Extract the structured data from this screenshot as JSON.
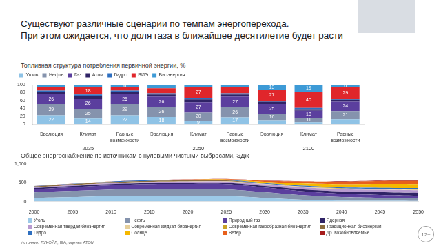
{
  "slide": {
    "title": [
      "Существуют различные сценарии по темпам энергоперехода.",
      "При этом ожидается, что доля газа в ближайшее десятилетие будет расти"
    ],
    "source": "Источник: ЛУКОЙЛ, IEA, оценки АТОМ",
    "badge": "12+"
  },
  "chart_data": [
    {
      "type": "bar",
      "title": "Топливная структура потребления первичной энергии, %",
      "categories": [
        "Эволюция",
        "Климат",
        "Равные возможности",
        "Эволюция",
        "Климат",
        "Равные возможности",
        "Эволюция",
        "Климат",
        "Равные возможности"
      ],
      "groups": [
        "2035",
        "2035",
        "2035",
        "2050",
        "2050",
        "2050",
        "2100",
        "2100",
        "2100"
      ],
      "stacked": true,
      "data_labels": true,
      "grid": false,
      "legend": "top",
      "ylim": [
        0,
        100
      ],
      "yticks": [
        0,
        20,
        40,
        60,
        80,
        100
      ],
      "series": [
        {
          "name": "Уголь",
          "color": "#8fc3e6",
          "values": [
            22,
            14,
            22,
            18,
            9,
            17,
            10,
            5,
            12
          ],
          "value_labels": [
            "22",
            "14",
            "22",
            "18",
            "9",
            "17",
            null,
            null,
            null
          ]
        },
        {
          "name": "Нефть",
          "color": "#8593ad",
          "values": [
            29,
            25,
            29,
            26,
            20,
            26,
            16,
            11,
            21
          ],
          "value_labels": [
            "29",
            "25",
            "29",
            "26",
            "20",
            "26",
            "16",
            "11",
            "21"
          ]
        },
        {
          "name": "Газ",
          "color": "#5b3f9e",
          "values": [
            26,
            26,
            26,
            26,
            27,
            27,
            25,
            18,
            24
          ],
          "value_labels": [
            "26",
            "26",
            "26",
            "26",
            "27",
            "27",
            "25",
            "18",
            "24"
          ]
        },
        {
          "name": "Атом",
          "color": "#2f2366",
          "values": [
            5,
            6,
            5,
            5,
            7,
            5,
            6,
            4,
            5
          ],
          "value_labels": [
            null,
            null,
            null,
            null,
            null,
            null,
            null,
            null,
            null
          ]
        },
        {
          "name": "Гидро",
          "color": "#2e6fc0",
          "values": [
            3,
            4,
            3,
            3,
            4,
            3,
            3,
            3,
            3
          ],
          "value_labels": [
            null,
            null,
            null,
            null,
            null,
            null,
            null,
            null,
            null
          ]
        },
        {
          "name": "ВИЭ",
          "color": "#e0262b",
          "values": [
            9,
            18,
            9,
            13,
            27,
            16,
            27,
            40,
            29
          ],
          "value_labels": [
            null,
            "18",
            null,
            null,
            "27",
            null,
            "27",
            "40",
            "29"
          ]
        },
        {
          "name": "Биоэнергия",
          "color": "#3d9ad6",
          "values": [
            6,
            7,
            6,
            9,
            6,
            6,
            13,
            19,
            6
          ],
          "value_labels": [
            null,
            null,
            "6",
            null,
            null,
            null,
            "13",
            "19",
            "6"
          ]
        }
      ]
    },
    {
      "type": "area",
      "title": "Общее энергоснабжение по источникам с нулевыми чистыми выбросами, ЭДж",
      "x": [
        2000,
        2005,
        2010,
        2015,
        2020,
        2025,
        2030,
        2035,
        2040,
        2045,
        2050
      ],
      "xlim": [
        2000,
        2050
      ],
      "xticks": [
        2000,
        2005,
        2010,
        2015,
        2020,
        2025,
        2030,
        2035,
        2040,
        2045,
        2050
      ],
      "ylim": [
        0,
        1000
      ],
      "yticks": [
        0,
        500,
        1000
      ],
      "stacked": true,
      "grid": false,
      "legend": "bottom",
      "series": [
        {
          "name": "Уголь",
          "color": "#9cc9e8",
          "values": [
            95,
            120,
            150,
            160,
            155,
            150,
            100,
            50,
            25,
            18,
            15
          ]
        },
        {
          "name": "Нефть",
          "color": "#8593ad",
          "values": [
            150,
            165,
            170,
            180,
            175,
            175,
            150,
            120,
            95,
            80,
            70
          ]
        },
        {
          "name": "Природный газ",
          "color": "#5b3f9e",
          "values": [
            85,
            100,
            115,
            125,
            140,
            140,
            125,
            105,
            90,
            80,
            70
          ]
        },
        {
          "name": "Ядерная",
          "color": "#2f2366",
          "values": [
            28,
            30,
            30,
            28,
            30,
            32,
            40,
            50,
            60,
            70,
            75
          ]
        },
        {
          "name": "Современная твердая биоэнергия",
          "color": "#b89ad0",
          "values": [
            20,
            22,
            25,
            28,
            30,
            35,
            45,
            55,
            60,
            65,
            70
          ]
        },
        {
          "name": "Современная жидкая биоэнергия",
          "color": "#e6cf9a",
          "values": [
            1,
            2,
            4,
            5,
            5,
            6,
            10,
            12,
            13,
            14,
            14
          ]
        },
        {
          "name": "Современная газообразная биоэнергия",
          "color": "#c9a227",
          "values": [
            0,
            1,
            1,
            1,
            2,
            3,
            5,
            8,
            10,
            12,
            14
          ]
        },
        {
          "name": "Традиционная биоэнергия",
          "color": "#8c6d3f",
          "values": [
            25,
            25,
            24,
            24,
            24,
            20,
            0,
            0,
            0,
            0,
            0
          ]
        },
        {
          "name": "Гидро",
          "color": "#2e6fc0",
          "values": [
            10,
            11,
            12,
            14,
            15,
            16,
            20,
            23,
            25,
            27,
            30
          ]
        },
        {
          "name": "Солнце",
          "color": "#f5b800",
          "values": [
            0,
            0,
            0,
            1,
            4,
            10,
            30,
            60,
            85,
            105,
            110
          ]
        },
        {
          "name": "Ветер",
          "color": "#e8601c",
          "values": [
            0,
            1,
            2,
            3,
            6,
            12,
            30,
            50,
            65,
            75,
            80
          ]
        },
        {
          "name": "Др. возобновляемые",
          "color": "#a61c1c",
          "values": [
            1,
            1,
            2,
            2,
            3,
            4,
            6,
            8,
            10,
            12,
            14
          ]
        }
      ]
    }
  ]
}
